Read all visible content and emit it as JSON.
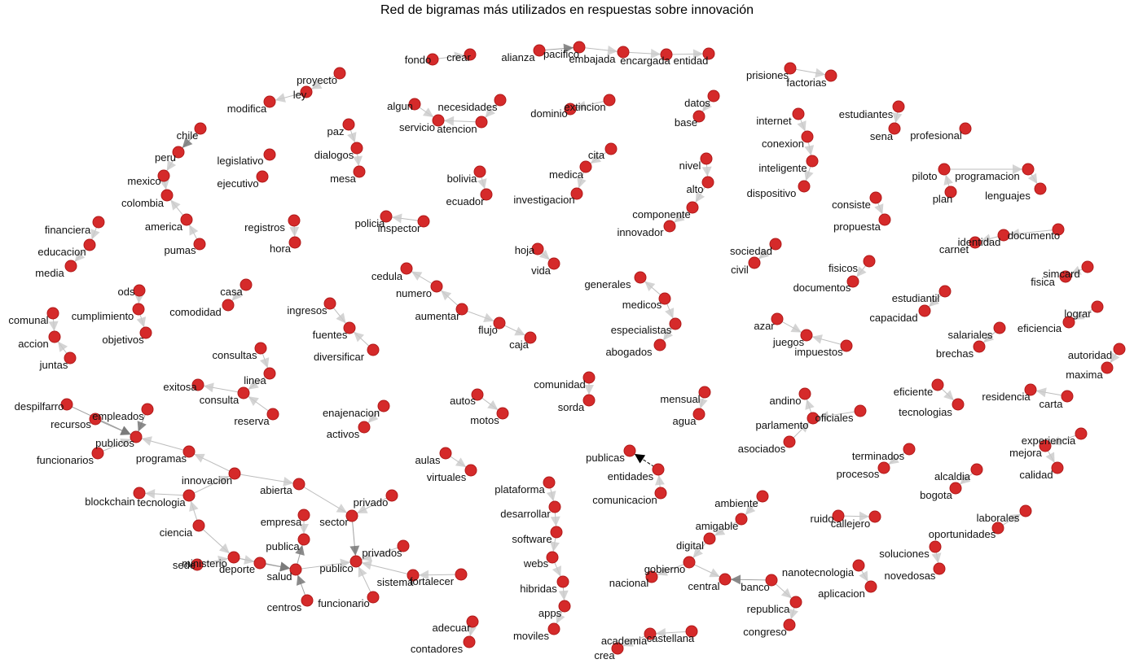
{
  "title": "Red de bigramas más utilizados en respuestas sobre innovación",
  "colors": {
    "node": "#d52a2a",
    "edge": "#bdbdbd",
    "arrow": "#9e9e9e",
    "arrow_strong": "#555555",
    "arrow_black": "#000000"
  },
  "nodes": [
    "proyecto",
    "ley",
    "modifica",
    "chile",
    "peru",
    "mexico",
    "colombia",
    "america",
    "pumas",
    "legislativo",
    "ejecutivo",
    "paz",
    "dialogos",
    "mesa",
    "financiera",
    "educacion",
    "media",
    "registros",
    "hora",
    "fondo",
    "crear",
    "alianza",
    "pacifico",
    "embajada",
    "encargada",
    "entidad",
    "algun",
    "servicio",
    "necesidades",
    "atencion",
    "dominio",
    "extincion",
    "datos",
    "base",
    "prisiones",
    "factorias",
    "internet",
    "conexion",
    "inteligente",
    "dispositivo",
    "estudiantes",
    "sena",
    "profesional",
    "piloto",
    "programacion",
    "plan",
    "lenguajes",
    "bolivia",
    "ecuador",
    "cita",
    "medica",
    "investigacion",
    "nivel",
    "alto",
    "componente",
    "innovador",
    "consiste",
    "propuesta",
    "policia",
    "inspector",
    "hoja",
    "vida",
    "identidad",
    "documento",
    "carnet",
    "sociedad",
    "civil",
    "simcard",
    "fisica",
    "fisicos",
    "documentos",
    "cedula",
    "numero",
    "aumentar",
    "flujo",
    "caja",
    "generales",
    "medicos",
    "especialistas",
    "abogados",
    "ods",
    "cumplimiento",
    "objetivos",
    "casa",
    "comodidad",
    "ingresos",
    "fuentes",
    "diversificar",
    "estudiantil",
    "capacidad",
    "lograr",
    "eficiencia",
    "comunal",
    "accion",
    "juntas",
    "azar",
    "juegos",
    "impuestos",
    "salariales",
    "brechas",
    "autoridad",
    "maxima",
    "consultas",
    "linea",
    "consulta",
    "exitosa",
    "reserva",
    "comunidad",
    "sorda",
    "mensual",
    "agua",
    "despilfarro",
    "recursos",
    "empleados",
    "publicos",
    "funcionarios",
    "enajenacion",
    "activos",
    "autos",
    "motos",
    "andino",
    "parlamento",
    "asociados",
    "oficiales",
    "eficiente",
    "tecnologias",
    "residencia",
    "carta",
    "experiencia",
    "mejora",
    "calidad",
    "programas",
    "innovacion",
    "abierta",
    "blockchain",
    "tecnologia",
    "aulas",
    "virtuales",
    "publicas",
    "entidades",
    "comunicacion",
    "terminados",
    "procesos",
    "alcaldia",
    "bogota",
    "plataforma",
    "desarrollar",
    "software",
    "webs",
    "hibridas",
    "apps",
    "moviles",
    "privado",
    "sector",
    "empresa",
    "publica",
    "ciencia",
    "sede",
    "ministerio",
    "deporte",
    "salud",
    "publico",
    "privados",
    "sistema",
    "fortalecer",
    "centros",
    "funcionario",
    "ambiente",
    "amigable",
    "digital",
    "gobierno",
    "nacional",
    "central",
    "banco",
    "republica",
    "congreso",
    "nanotecnologia",
    "aplicacion",
    "soluciones",
    "novedosas",
    "oportunidades",
    "laborales",
    "ruido",
    "callejero",
    "adecuar",
    "contadores",
    "academia",
    "castellana",
    "crea"
  ]
}
